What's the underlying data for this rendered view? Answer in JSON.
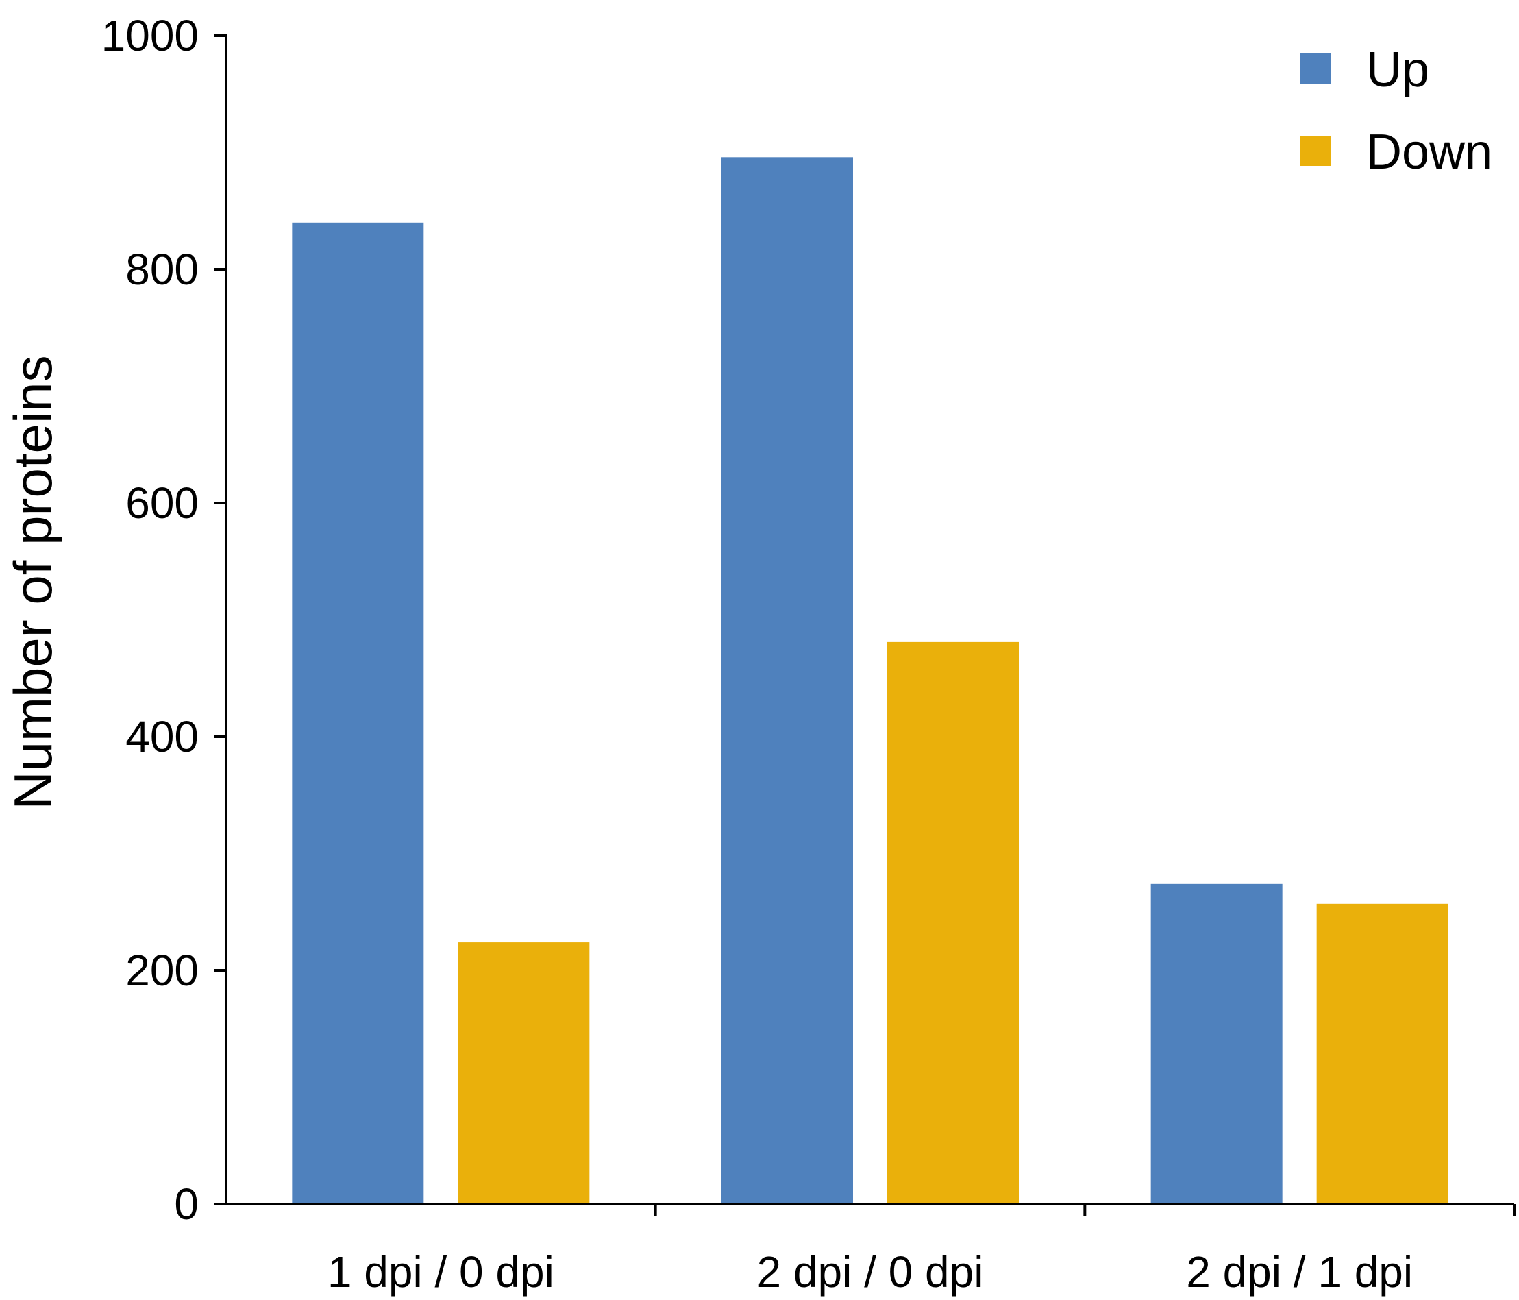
{
  "chart_data": {
    "type": "bar",
    "categories": [
      "1 dpi / 0 dpi",
      "2 dpi / 0 dpi",
      "2 dpi / 1 dpi"
    ],
    "series": [
      {
        "name": "Up",
        "color": "#4f81bd",
        "values": [
          840,
          896,
          274
        ]
      },
      {
        "name": "Down",
        "color": "#eab00b",
        "values": [
          224,
          481,
          257
        ]
      }
    ],
    "ylabel": "Number of proteins",
    "xlabel": "",
    "ylim": [
      0,
      1000
    ],
    "yticks": [
      0,
      200,
      400,
      600,
      800,
      1000
    ],
    "grid": false,
    "legend_position": "top-right"
  }
}
